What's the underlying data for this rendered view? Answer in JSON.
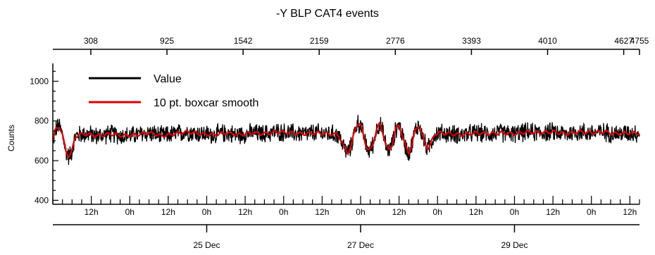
{
  "chart_data": {
    "type": "line",
    "title": "-Y BLP CAT4 events",
    "ylabel": "Counts",
    "xlabel": "",
    "ylim": [
      380,
      1090
    ],
    "yticks": [
      400,
      600,
      800,
      1000
    ],
    "top_axis": {
      "range": [
        0,
        4755
      ],
      "tick_labels": [
        "308",
        "925",
        "1542",
        "2159",
        "2776",
        "3393",
        "4010",
        "4627",
        "4755"
      ],
      "tick_values": [
        308,
        925,
        1542,
        2159,
        2776,
        3393,
        4010,
        4627,
        4755
      ]
    },
    "bottom_axis": {
      "unit_hours": "hours since first sample",
      "range_hours": [
        0,
        183
      ],
      "hour_labels": [
        "12h",
        "0h",
        "12h",
        "0h",
        "12h",
        "0h",
        "12h",
        "0h",
        "12h",
        "0h",
        "12h",
        "0h",
        "12h",
        "0h",
        "12h"
      ],
      "hour_label_positions": [
        12,
        24,
        36,
        48,
        60,
        72,
        84,
        96,
        108,
        120,
        132,
        144,
        156,
        168,
        180
      ],
      "date_labels": [
        "25 Dec",
        "27 Dec",
        "29 Dec"
      ],
      "date_positions": [
        48,
        96,
        144
      ]
    },
    "legend": {
      "placement": "top-left",
      "entries": [
        "Value",
        "10 pt. boxcar smooth"
      ]
    },
    "series": [
      {
        "name": "Value",
        "color": "#000000",
        "baseline": 735,
        "noise_amplitude": 55,
        "description_values": "noisy signal around ~735 counts"
      },
      {
        "name": "10 pt. boxcar smooth",
        "color": "#e00000",
        "smooth_points": [
          [
            0,
            700
          ],
          [
            1,
            760
          ],
          [
            2,
            775
          ],
          [
            3,
            730
          ],
          [
            4,
            650
          ],
          [
            5,
            620
          ],
          [
            6,
            650
          ],
          [
            7,
            720
          ],
          [
            8,
            730
          ],
          [
            10,
            735
          ],
          [
            14,
            725
          ],
          [
            18,
            735
          ],
          [
            22,
            725
          ],
          [
            26,
            730
          ],
          [
            30,
            740
          ],
          [
            34,
            725
          ],
          [
            38,
            735
          ],
          [
            42,
            745
          ],
          [
            46,
            735
          ],
          [
            50,
            730
          ],
          [
            54,
            740
          ],
          [
            58,
            730
          ],
          [
            62,
            740
          ],
          [
            66,
            735
          ],
          [
            70,
            745
          ],
          [
            74,
            740
          ],
          [
            78,
            735
          ],
          [
            82,
            740
          ],
          [
            86,
            735
          ],
          [
            89,
            730
          ],
          [
            90,
            700
          ],
          [
            91,
            660
          ],
          [
            92,
            640
          ],
          [
            93,
            670
          ],
          [
            94,
            740
          ],
          [
            95,
            790
          ],
          [
            96,
            780
          ],
          [
            97,
            720
          ],
          [
            98,
            660
          ],
          [
            99,
            650
          ],
          [
            100,
            690
          ],
          [
            101,
            760
          ],
          [
            102,
            785
          ],
          [
            103,
            740
          ],
          [
            104,
            670
          ],
          [
            105,
            650
          ],
          [
            106,
            690
          ],
          [
            107,
            760
          ],
          [
            108,
            780
          ],
          [
            109,
            730
          ],
          [
            110,
            670
          ],
          [
            111,
            640
          ],
          [
            112,
            680
          ],
          [
            113,
            750
          ],
          [
            114,
            780
          ],
          [
            115,
            740
          ],
          [
            116,
            690
          ],
          [
            117,
            660
          ],
          [
            118,
            690
          ],
          [
            119,
            730
          ],
          [
            120,
            740
          ],
          [
            124,
            735
          ],
          [
            128,
            730
          ],
          [
            132,
            740
          ],
          [
            136,
            735
          ],
          [
            140,
            740
          ],
          [
            144,
            735
          ],
          [
            148,
            745
          ],
          [
            152,
            740
          ],
          [
            156,
            745
          ],
          [
            160,
            735
          ],
          [
            164,
            745
          ],
          [
            168,
            740
          ],
          [
            172,
            745
          ],
          [
            176,
            735
          ],
          [
            180,
            740
          ],
          [
            183,
            738
          ]
        ]
      }
    ]
  }
}
